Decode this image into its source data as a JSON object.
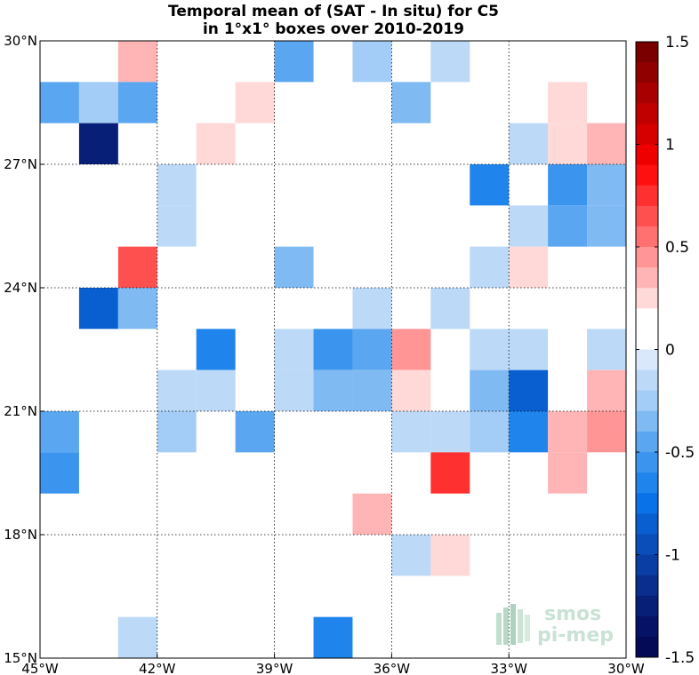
{
  "chart_data": {
    "type": "heatmap",
    "title_line1": "Temporal mean of (SAT - In situ) for C5",
    "title_line2": "in 1°x1° boxes over 2010-2019",
    "x_ticks": [
      {
        "value": -45,
        "label": "45°W"
      },
      {
        "value": -42,
        "label": "42°W"
      },
      {
        "value": -39,
        "label": "39°W"
      },
      {
        "value": -36,
        "label": "36°W"
      },
      {
        "value": -33,
        "label": "33°W"
      },
      {
        "value": -30,
        "label": "30°W"
      }
    ],
    "y_ticks": [
      {
        "value": 30,
        "label": "30°N"
      },
      {
        "value": 27,
        "label": "27°N"
      },
      {
        "value": 24,
        "label": "24°N"
      },
      {
        "value": 21,
        "label": "21°N"
      },
      {
        "value": 18,
        "label": "18°N"
      },
      {
        "value": 15,
        "label": "15°N"
      }
    ],
    "xlim": [
      -45,
      -30
    ],
    "ylim": [
      15,
      30
    ],
    "grid": true,
    "color_range": [
      -1.5,
      1.5
    ],
    "colorbar_ticks": [
      {
        "value": 1.5,
        "label": "1.5"
      },
      {
        "value": 1,
        "label": "1"
      },
      {
        "value": 0.5,
        "label": "0.5"
      },
      {
        "value": 0,
        "label": "0"
      },
      {
        "value": -0.5,
        "label": "-0.5"
      },
      {
        "value": -1,
        "label": "-1"
      },
      {
        "value": -1.5,
        "label": "-1.5"
      }
    ],
    "colorbar_colors": [
      "#7a0000",
      "#910000",
      "#a80000",
      "#c00000",
      "#d60000",
      "#ee0000",
      "#ff1010",
      "#ff3030",
      "#ff5050",
      "#ff7070",
      "#ff9595",
      "#ffb5b5",
      "#ffd8d8",
      "#ffffff",
      "#ffffff",
      "#d9e9fb",
      "#bcd9f8",
      "#a3ccf6",
      "#7fbaf3",
      "#5aa6f0",
      "#3b95ee",
      "#1f84ec",
      "#0a72e8",
      "#0a5fd0",
      "#0a4eba",
      "#0a3ea4",
      "#0a2e8e",
      "#081f78",
      "#061266",
      "#040a56"
    ],
    "cells": [
      {
        "lon": -42.5,
        "lat": 29.5,
        "value": 0.35
      },
      {
        "lon": -38.5,
        "lat": 29.5,
        "value": -0.4
      },
      {
        "lon": -36.5,
        "lat": 29.5,
        "value": -0.25
      },
      {
        "lon": -34.5,
        "lat": 29.5,
        "value": -0.15
      },
      {
        "lon": -44.5,
        "lat": 28.5,
        "value": -0.4
      },
      {
        "lon": -43.5,
        "lat": 28.5,
        "value": -0.25
      },
      {
        "lon": -42.5,
        "lat": 28.5,
        "value": -0.45
      },
      {
        "lon": -39.5,
        "lat": 28.5,
        "value": 0.25
      },
      {
        "lon": -35.5,
        "lat": 28.5,
        "value": -0.35
      },
      {
        "lon": -31.5,
        "lat": 28.5,
        "value": 0.25
      },
      {
        "lon": -43.5,
        "lat": 27.5,
        "value": -1.25
      },
      {
        "lon": -40.5,
        "lat": 27.5,
        "value": 0.25
      },
      {
        "lon": -32.5,
        "lat": 27.5,
        "value": -0.15
      },
      {
        "lon": -31.5,
        "lat": 27.5,
        "value": 0.25
      },
      {
        "lon": -30.5,
        "lat": 27.5,
        "value": 0.35
      },
      {
        "lon": -41.5,
        "lat": 26.5,
        "value": -0.15
      },
      {
        "lon": -35.5,
        "lat": 26.5,
        "value": 0.15
      },
      {
        "lon": -33.5,
        "lat": 26.5,
        "value": -0.6
      },
      {
        "lon": -31.5,
        "lat": 26.5,
        "value": -0.55
      },
      {
        "lon": -30.5,
        "lat": 26.5,
        "value": -0.35
      },
      {
        "lon": -41.5,
        "lat": 25.5,
        "value": -0.15
      },
      {
        "lon": -34.5,
        "lat": 25.5,
        "value": 0.15
      },
      {
        "lon": -32.5,
        "lat": 25.5,
        "value": -0.15
      },
      {
        "lon": -31.5,
        "lat": 25.5,
        "value": -0.45
      },
      {
        "lon": -30.5,
        "lat": 25.5,
        "value": -0.35
      },
      {
        "lon": -42.5,
        "lat": 24.5,
        "value": 0.65
      },
      {
        "lon": -41.5,
        "lat": 24.5,
        "value": 0.15
      },
      {
        "lon": -38.5,
        "lat": 24.5,
        "value": -0.35
      },
      {
        "lon": -33.5,
        "lat": 24.5,
        "value": -0.15
      },
      {
        "lon": -32.5,
        "lat": 24.5,
        "value": 0.25
      },
      {
        "lon": -43.5,
        "lat": 23.5,
        "value": -0.8
      },
      {
        "lon": -42.5,
        "lat": 23.5,
        "value": -0.35
      },
      {
        "lon": -39.5,
        "lat": 23.5,
        "value": 0.15
      },
      {
        "lon": -36.5,
        "lat": 23.5,
        "value": -0.15
      },
      {
        "lon": -34.5,
        "lat": 23.5,
        "value": -0.15
      },
      {
        "lon": -30.5,
        "lat": 23.5,
        "value": 0.15
      },
      {
        "lon": -40.5,
        "lat": 22.5,
        "value": -0.6
      },
      {
        "lon": -38.5,
        "lat": 22.5,
        "value": -0.15
      },
      {
        "lon": -37.5,
        "lat": 22.5,
        "value": -0.55
      },
      {
        "lon": -36.5,
        "lat": 22.5,
        "value": -0.45
      },
      {
        "lon": -35.5,
        "lat": 22.5,
        "value": 0.5
      },
      {
        "lon": -33.5,
        "lat": 22.5,
        "value": -0.15
      },
      {
        "lon": -32.5,
        "lat": 22.5,
        "value": -0.15
      },
      {
        "lon": -31.5,
        "lat": 22.5,
        "value": 0.15
      },
      {
        "lon": -30.5,
        "lat": 22.5,
        "value": -0.15
      },
      {
        "lon": -41.5,
        "lat": 21.5,
        "value": -0.15
      },
      {
        "lon": -40.5,
        "lat": 21.5,
        "value": -0.15
      },
      {
        "lon": -38.5,
        "lat": 21.5,
        "value": -0.15
      },
      {
        "lon": -37.5,
        "lat": 21.5,
        "value": -0.35
      },
      {
        "lon": -36.5,
        "lat": 21.5,
        "value": -0.35
      },
      {
        "lon": -35.5,
        "lat": 21.5,
        "value": 0.25
      },
      {
        "lon": -33.5,
        "lat": 21.5,
        "value": -0.3
      },
      {
        "lon": -32.5,
        "lat": 21.5,
        "value": -0.8
      },
      {
        "lon": -30.5,
        "lat": 21.5,
        "value": 0.3
      },
      {
        "lon": -44.5,
        "lat": 20.5,
        "value": -0.45
      },
      {
        "lon": -41.5,
        "lat": 20.5,
        "value": -0.25
      },
      {
        "lon": -39.5,
        "lat": 20.5,
        "value": -0.4
      },
      {
        "lon": -36.5,
        "lat": 20.5,
        "value": 0.15
      },
      {
        "lon": -35.5,
        "lat": 20.5,
        "value": -0.15
      },
      {
        "lon": -34.5,
        "lat": 20.5,
        "value": -0.15
      },
      {
        "lon": -33.5,
        "lat": 20.5,
        "value": -0.25
      },
      {
        "lon": -32.5,
        "lat": 20.5,
        "value": -0.6
      },
      {
        "lon": -31.5,
        "lat": 20.5,
        "value": 0.3
      },
      {
        "lon": -30.5,
        "lat": 20.5,
        "value": 0.5
      },
      {
        "lon": -44.5,
        "lat": 19.5,
        "value": -0.55
      },
      {
        "lon": -34.5,
        "lat": 19.5,
        "value": 0.75
      },
      {
        "lon": -31.5,
        "lat": 19.5,
        "value": 0.4
      },
      {
        "lon": -43.5,
        "lat": 18.5,
        "value": 0.15
      },
      {
        "lon": -40.5,
        "lat": 18.5,
        "value": 0.15
      },
      {
        "lon": -36.5,
        "lat": 18.5,
        "value": 0.4
      },
      {
        "lon": -35.5,
        "lat": 17.5,
        "value": -0.15
      },
      {
        "lon": -34.5,
        "lat": 17.5,
        "value": 0.25
      },
      {
        "lon": -42.5,
        "lat": 15.5,
        "value": -0.15
      },
      {
        "lon": -41.5,
        "lat": 15.5,
        "value": 0.15
      },
      {
        "lon": -37.5,
        "lat": 15.5,
        "value": -0.6
      }
    ]
  },
  "watermark": {
    "line1": "smos",
    "line2": "pi-mep",
    "color": "#7fb89a"
  }
}
